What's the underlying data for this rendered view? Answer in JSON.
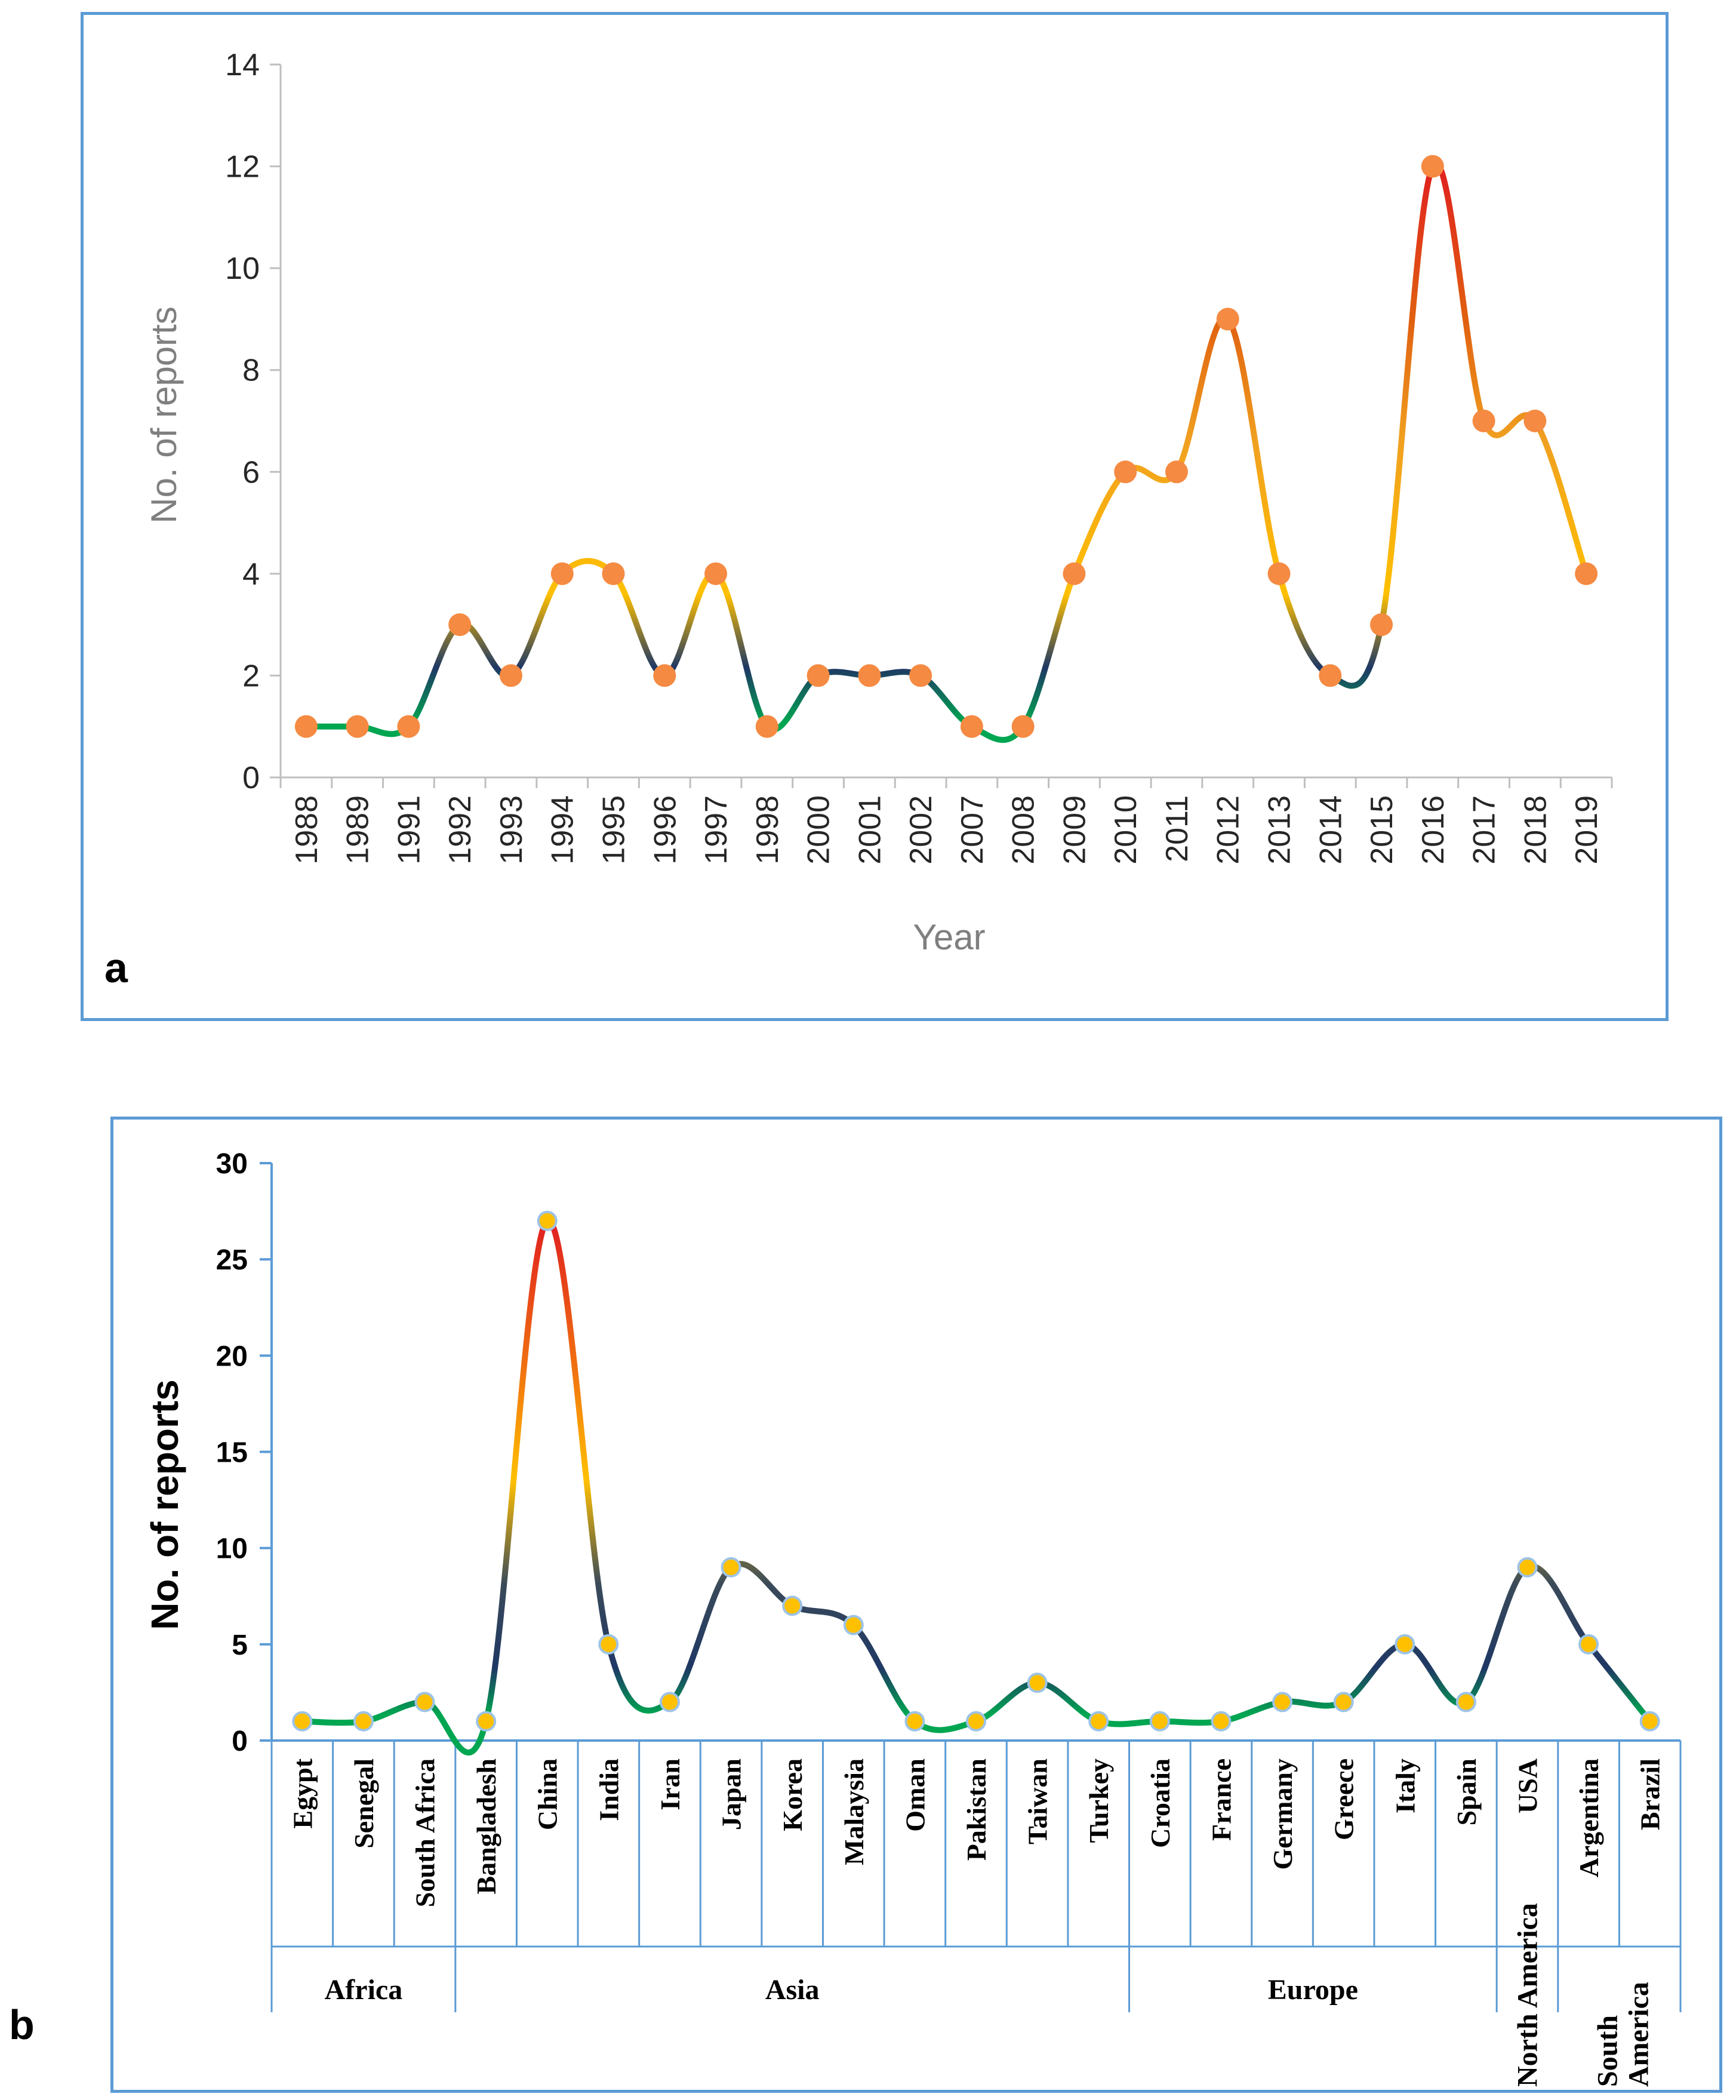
{
  "colors": {
    "border": "#5b9bd5",
    "low": "#00a651",
    "mid": "#1f3864",
    "high_mid": "#ffc000",
    "peak": "#e02020",
    "marker_a": "#f58a42",
    "marker_b": "#ffc000"
  },
  "chart_data": [
    {
      "panel": "a",
      "type": "line",
      "xlabel": "Year",
      "ylabel": "No. of reports",
      "ylim": [
        0,
        14
      ],
      "yticks": [
        "0",
        "2",
        "4",
        "6",
        "8",
        "10",
        "12",
        "14"
      ],
      "categories": [
        "1988",
        "1989",
        "1991",
        "1992",
        "1993",
        "1994",
        "1995",
        "1996",
        "1997",
        "1998",
        "2000",
        "2001",
        "2002",
        "2007",
        "2008",
        "2009",
        "2010",
        "2011",
        "2012",
        "2013",
        "2014",
        "2015",
        "2016",
        "2017",
        "2018",
        "2019"
      ],
      "values": [
        1,
        1,
        1,
        3,
        2,
        4,
        4,
        2,
        4,
        1,
        2,
        2,
        2,
        1,
        1,
        4,
        6,
        6,
        9,
        4,
        2,
        3,
        12,
        7,
        7,
        4
      ],
      "grid": false
    },
    {
      "panel": "b",
      "type": "line",
      "ylabel": "No. of reports",
      "ylim": [
        0,
        30
      ],
      "yticks": [
        "0",
        "5",
        "10",
        "15",
        "20",
        "25",
        "30"
      ],
      "categories": [
        "Egypt",
        "Senegal",
        "South Africa",
        "Bangladesh",
        "China",
        "India",
        "Iran",
        "Japan",
        "Korea",
        "Malaysia",
        "Oman",
        "Pakistan",
        "Taiwan",
        "Turkey",
        "Croatia",
        "France",
        "Germany",
        "Greece",
        "Italy",
        "Spain",
        "USA",
        "Argentina",
        "Brazil"
      ],
      "values": [
        1,
        1,
        2,
        1,
        27,
        5,
        2,
        9,
        7,
        6,
        1,
        1,
        3,
        1,
        1,
        1,
        2,
        2,
        5,
        2,
        9,
        5,
        1
      ],
      "groups": [
        {
          "label": "Africa",
          "start": 0,
          "end": 2
        },
        {
          "label": "Asia",
          "start": 3,
          "end": 13
        },
        {
          "label": "Europe",
          "start": 14,
          "end": 19
        },
        {
          "label": "North America",
          "start": 20,
          "end": 20
        },
        {
          "label": "South America",
          "start": 21,
          "end": 22
        }
      ],
      "grid": false
    }
  ]
}
